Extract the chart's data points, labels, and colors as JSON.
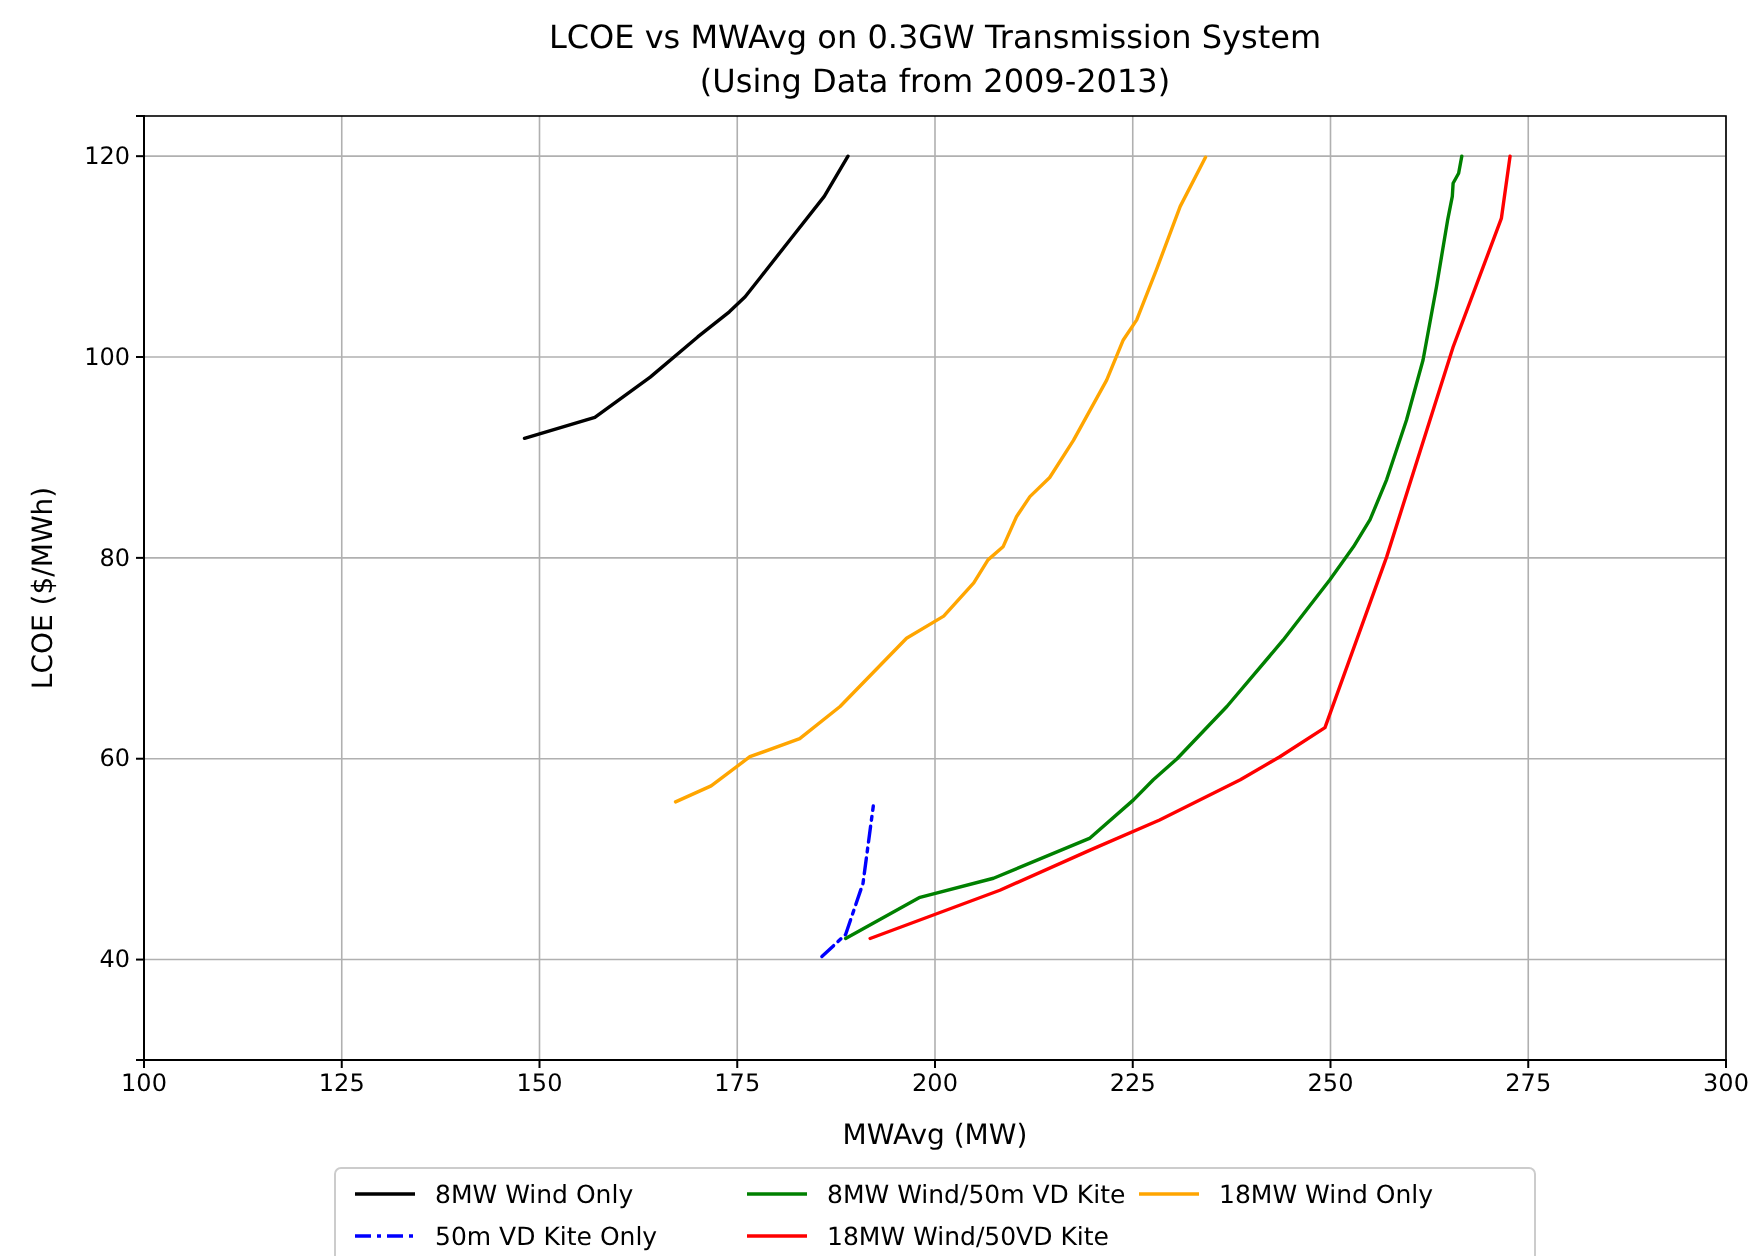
{
  "chart_data": {
    "type": "line",
    "title": "LCOE vs MWAvg on 0.3GW Transmission System\n(Using Data from 2009-2013)",
    "xlabel": "MWAvg (MW)",
    "ylabel": "LCOE ($/MWh)",
    "xlim": [
      100,
      300
    ],
    "xticks": [
      100,
      125,
      150,
      175,
      200,
      225,
      250,
      275,
      300
    ],
    "ylim": [
      30,
      124
    ],
    "yticks": [
      40,
      60,
      80,
      100,
      120
    ],
    "grid": true,
    "legend": "bottom",
    "line_style": "solid",
    "marker": "none",
    "series": [
      {
        "name": "8MW Wind Only",
        "color": "#000000",
        "x": [
          148.1,
          157,
          164,
          170,
          174,
          176,
          178,
          182,
          186,
          189
        ],
        "values": [
          91.9,
          94,
          98,
          102,
          104.5,
          106,
          108,
          112,
          116,
          120
        ]
      },
      {
        "name": "50m VD Kite Only",
        "color": "#0000ff",
        "line_style": "dashdot",
        "x": [
          185.7,
          188.7,
          190.9,
          192.2
        ],
        "values": [
          40.3,
          42.5,
          47.6,
          55.3
        ]
      },
      {
        "name": "8MW Wind/50m VD Kite",
        "color": "#008000",
        "x": [
          188.7,
          198.1,
          207.4,
          219.6,
          225.1,
          227.6,
          230.6,
          236.9,
          244.0,
          249.9,
          252.9,
          255.0,
          257.1,
          259.6,
          261.7,
          263.4,
          264.8,
          265.4,
          265.5,
          266.2,
          266.6
        ],
        "values": [
          42.1,
          46.2,
          48.1,
          52.1,
          55.9,
          57.9,
          60.0,
          65.2,
          71.8,
          77.8,
          81.1,
          83.8,
          87.8,
          93.7,
          99.7,
          107.0,
          113.6,
          116.0,
          117.3,
          118.3,
          120
        ]
      },
      {
        "name": "18MW Wind/50VD Kite",
        "color": "#ff0000",
        "x": [
          191.8,
          208.2,
          219.6,
          228.4,
          238.6,
          243.6,
          249.3,
          257.1,
          265.5,
          271.6,
          272.7
        ],
        "values": [
          42.1,
          46.9,
          50.9,
          53.9,
          57.9,
          60.2,
          63.1,
          80.1,
          101.0,
          113.8,
          120
        ]
      },
      {
        "name": "18MW Wind Only",
        "color": "#ffa500",
        "x": [
          167.2,
          171.7,
          176.6,
          182.9,
          188.0,
          196.4,
          201.1,
          204.9,
          206.7,
          208.6,
          210.3,
          212.0,
          214.5,
          217.5,
          221.7,
          223.8,
          225.5,
          228.0,
          231.0,
          234.2
        ],
        "values": [
          55.7,
          57.3,
          60.2,
          62.0,
          65.2,
          72.0,
          74.2,
          77.5,
          79.8,
          81.1,
          84.1,
          86.1,
          88.0,
          91.7,
          97.7,
          101.7,
          103.7,
          108.7,
          115.0,
          119.9
        ]
      }
    ]
  }
}
